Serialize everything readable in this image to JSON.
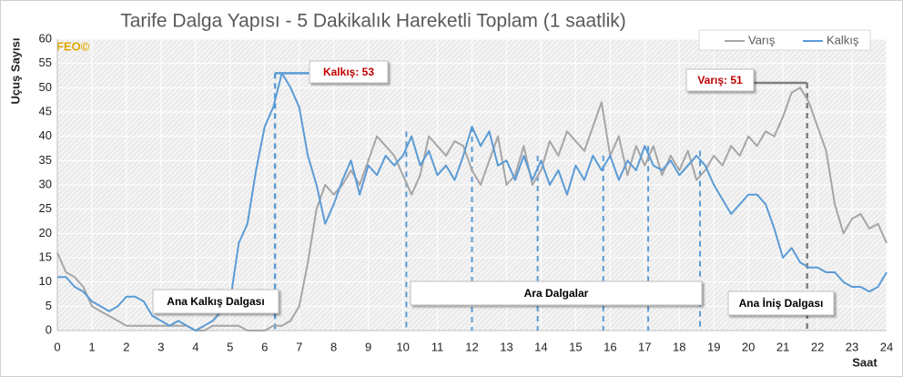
{
  "chart_data": {
    "type": "line",
    "title": "Tarife Dalga Yapısı - 5 Dakikalık Hareketli Toplam (1 saatlik)",
    "xlabel": "Saat",
    "ylabel": "Uçuş Sayısı",
    "watermark": "FEO©",
    "x": [
      0,
      0.25,
      0.5,
      0.75,
      1,
      1.25,
      1.5,
      1.75,
      2,
      2.25,
      2.5,
      2.75,
      3,
      3.25,
      3.5,
      3.75,
      4,
      4.25,
      4.5,
      4.75,
      5,
      5.25,
      5.5,
      5.75,
      6,
      6.25,
      6.5,
      6.75,
      7,
      7.25,
      7.5,
      7.75,
      8,
      8.25,
      8.5,
      8.75,
      9,
      9.25,
      9.5,
      9.75,
      10,
      10.25,
      10.5,
      10.75,
      11,
      11.25,
      11.5,
      11.75,
      12,
      12.25,
      12.5,
      12.75,
      13,
      13.25,
      13.5,
      13.75,
      14,
      14.25,
      14.5,
      14.75,
      15,
      15.25,
      15.5,
      15.75,
      16,
      16.25,
      16.5,
      16.75,
      17,
      17.25,
      17.5,
      17.75,
      18,
      18.25,
      18.5,
      18.75,
      19,
      19.25,
      19.5,
      19.75,
      20,
      20.25,
      20.5,
      20.75,
      21,
      21.25,
      21.5,
      21.75,
      22,
      22.25,
      22.5,
      22.75,
      23,
      23.25,
      23.5,
      23.75,
      24
    ],
    "series": [
      {
        "name": "Varış",
        "color": "#a6a6a6",
        "values": [
          16,
          12,
          11,
          9,
          5,
          4,
          3,
          2,
          1,
          1,
          1,
          1,
          1,
          1,
          1,
          1,
          0,
          0,
          1,
          1,
          1,
          1,
          0,
          0,
          0,
          1,
          1,
          2,
          5,
          14,
          25,
          30,
          28,
          30,
          33,
          30,
          35,
          40,
          38,
          36,
          32,
          28,
          32,
          40,
          38,
          36,
          39,
          38,
          33,
          30,
          35,
          40,
          30,
          32,
          38,
          30,
          33,
          39,
          36,
          41,
          39,
          37,
          42,
          47,
          36,
          40,
          32,
          38,
          34,
          38,
          32,
          36,
          33,
          37,
          31,
          33,
          36,
          34,
          38,
          36,
          40,
          38,
          41,
          40,
          44,
          49,
          50,
          47,
          42,
          37,
          26,
          20,
          23,
          24,
          21,
          22,
          18
        ]
      },
      {
        "name": "Kalkış",
        "color": "#5b9bd5",
        "values": [
          11,
          11,
          9,
          8,
          6,
          5,
          4,
          5,
          7,
          7,
          6,
          3,
          2,
          1,
          2,
          1,
          0,
          1,
          2,
          4,
          6,
          18,
          22,
          33,
          42,
          46,
          53,
          50,
          46,
          36,
          30,
          22,
          26,
          31,
          35,
          28,
          34,
          32,
          36,
          34,
          36,
          40,
          34,
          37,
          32,
          34,
          31,
          36,
          42,
          38,
          41,
          34,
          35,
          31,
          36,
          31,
          35,
          30,
          33,
          28,
          34,
          31,
          36,
          33,
          36,
          31,
          35,
          33,
          38,
          34,
          33,
          35,
          32,
          34,
          36,
          34,
          30,
          27,
          24,
          26,
          28,
          28,
          26,
          21,
          15,
          17,
          14,
          13,
          13,
          12,
          12,
          10,
          9,
          9,
          8,
          9,
          12
        ]
      }
    ],
    "xlim": [
      0,
      24
    ],
    "xticks": [
      0,
      1,
      2,
      3,
      4,
      5,
      6,
      7,
      8,
      9,
      10,
      11,
      12,
      13,
      14,
      15,
      16,
      17,
      18,
      19,
      20,
      21,
      22,
      23,
      24
    ],
    "ylim": [
      0,
      60
    ],
    "yticks": [
      0,
      5,
      10,
      15,
      20,
      25,
      30,
      35,
      40,
      45,
      50,
      55,
      60
    ],
    "grid": true,
    "legend": "top-right",
    "annotations": [
      {
        "text": "Kalkış: 53",
        "color": "#c00000"
      },
      {
        "text": "Varış: 51",
        "color": "#c00000"
      },
      {
        "text": "Ana Kalkış Dalgası",
        "color": "#000000"
      },
      {
        "text": "Ara Dalgalar",
        "color": "#000000"
      },
      {
        "text": "Ana İniş Dalgası",
        "color": "#000000"
      }
    ],
    "wave_lines": [
      {
        "x": 6.3,
        "y": 53,
        "color": "#5b9bd5"
      },
      {
        "x": 10.1,
        "y": 41,
        "color": "#5b9bd5"
      },
      {
        "x": 12.0,
        "y": 42,
        "color": "#5b9bd5"
      },
      {
        "x": 13.9,
        "y": 36,
        "color": "#5b9bd5"
      },
      {
        "x": 15.8,
        "y": 36,
        "color": "#5b9bd5"
      },
      {
        "x": 17.1,
        "y": 38,
        "color": "#5b9bd5"
      },
      {
        "x": 18.6,
        "y": 37,
        "color": "#5b9bd5"
      },
      {
        "x": 21.7,
        "y": 51,
        "color": "#7f7f7f"
      }
    ]
  }
}
